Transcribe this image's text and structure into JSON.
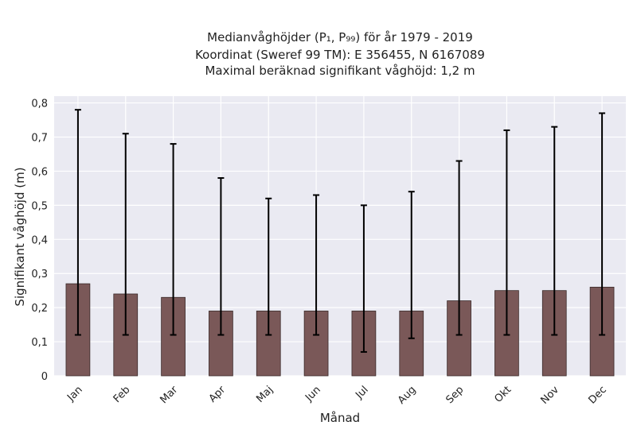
{
  "chart_data": {
    "type": "bar",
    "title_lines": [
      "Medianvåghöjder (P₁, P₉₉) för år 1979 - 2019",
      "Koordinat (Sweref 99 TM): E 356455, N 6167089",
      "Maximal beräknad signifikant våghöjd: 1,2 m"
    ],
    "xlabel": "Månad",
    "ylabel": "Signifikant våghöjd (m)",
    "categories": [
      "Jan",
      "Feb",
      "Mar",
      "Apr",
      "Maj",
      "Jun",
      "Jul",
      "Aug",
      "Sep",
      "Okt",
      "Nov",
      "Dec"
    ],
    "values": [
      0.27,
      0.24,
      0.23,
      0.19,
      0.19,
      0.19,
      0.19,
      0.19,
      0.22,
      0.25,
      0.25,
      0.26
    ],
    "error_low": [
      0.12,
      0.12,
      0.12,
      0.12,
      0.12,
      0.12,
      0.07,
      0.11,
      0.12,
      0.12,
      0.12,
      0.12
    ],
    "error_high": [
      0.78,
      0.71,
      0.68,
      0.58,
      0.52,
      0.53,
      0.5,
      0.54,
      0.63,
      0.72,
      0.73,
      0.77
    ],
    "ylim": [
      0,
      0.82
    ],
    "yticks": [
      0,
      0.1,
      0.2,
      0.3,
      0.4,
      0.5,
      0.6,
      0.7,
      0.8
    ],
    "ytick_labels": [
      "0",
      "0,1",
      "0,2",
      "0,3",
      "0,4",
      "0,5",
      "0,6",
      "0,7",
      "0,8"
    ],
    "grid": true,
    "colors": {
      "bar": "#7a5858",
      "bar_edge": "#3a2a2a",
      "error_bar": "#000000",
      "plot_background": "#eaeaf2",
      "grid": "#ffffff"
    }
  }
}
